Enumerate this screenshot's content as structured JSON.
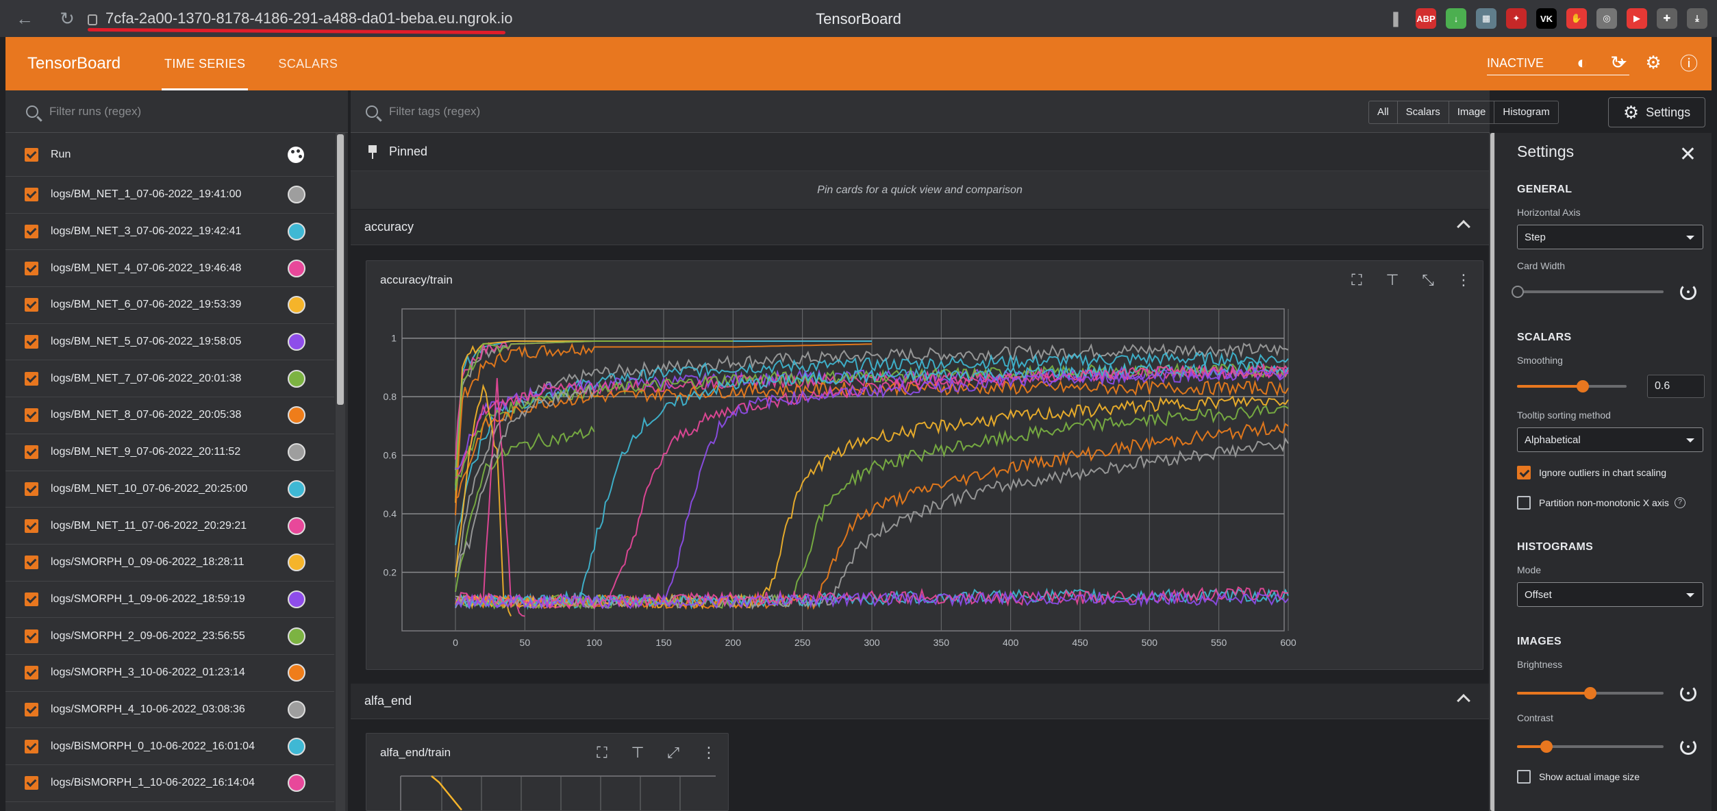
{
  "browser": {
    "url": "7cfa-2a00-1370-8178-4186-291-a488-da01-beba.eu.ngrok.io",
    "tab_title": "TensorBoard",
    "extensions": [
      {
        "name": "abp-icon",
        "label": "ABP",
        "color": "#d32f2f"
      },
      {
        "name": "download-helper-icon",
        "label": "↓",
        "color": "#4caf50"
      },
      {
        "name": "extension-grid-icon",
        "label": "▦",
        "color": "#607d8b"
      },
      {
        "name": "extension-dev-icon",
        "label": "✦",
        "color": "#c62828"
      },
      {
        "name": "vk-icon",
        "label": "VK",
        "color": "#000000"
      },
      {
        "name": "stop-hand-icon",
        "label": "✋",
        "color": "#e53935"
      },
      {
        "name": "globe-icon",
        "label": "◎",
        "color": "#757575"
      },
      {
        "name": "youtube-icon",
        "label": "▶",
        "color": "#e53935"
      },
      {
        "name": "puzzle-icon",
        "label": "✚",
        "color": "#616161"
      },
      {
        "name": "download-icon",
        "label": "⤓",
        "color": "#616161"
      }
    ]
  },
  "app": {
    "brand": "TensorBoard",
    "tabs": [
      "TIME SERIES",
      "SCALARS"
    ],
    "reload_status": "INACTIVE",
    "accent": "#e8771f"
  },
  "runs": {
    "filter_placeholder": "Filter runs (regex)",
    "header": "Run",
    "items": [
      {
        "name": "logs/BM_NET_1_07-06-2022_19:41:00",
        "color": "#9e9e9e"
      },
      {
        "name": "logs/BM_NET_3_07-06-2022_19:42:41",
        "color": "#3fb8d4"
      },
      {
        "name": "logs/BM_NET_4_07-06-2022_19:46:48",
        "color": "#e8489a"
      },
      {
        "name": "logs/BM_NET_6_07-06-2022_19:53:39",
        "color": "#f5b42a"
      },
      {
        "name": "logs/BM_NET_5_07-06-2022_19:58:05",
        "color": "#8e4dea"
      },
      {
        "name": "logs/BM_NET_7_07-06-2022_20:01:38",
        "color": "#7cb342"
      },
      {
        "name": "logs/BM_NET_8_07-06-2022_20:05:38",
        "color": "#ef7d1a"
      },
      {
        "name": "logs/BM_NET_9_07-06-2022_20:11:52",
        "color": "#9e9e9e"
      },
      {
        "name": "logs/BM_NET_10_07-06-2022_20:25:00",
        "color": "#3fb8d4"
      },
      {
        "name": "logs/BM_NET_11_07-06-2022_20:29:21",
        "color": "#e8489a"
      },
      {
        "name": "logs/SMORPH_0_09-06-2022_18:28:11",
        "color": "#f5b42a"
      },
      {
        "name": "logs/SMORPH_1_09-06-2022_18:59:19",
        "color": "#8e4dea"
      },
      {
        "name": "logs/SMORPH_2_09-06-2022_23:56:55",
        "color": "#7cb342"
      },
      {
        "name": "logs/SMORPH_3_10-06-2022_01:23:14",
        "color": "#ef7d1a"
      },
      {
        "name": "logs/SMORPH_4_10-06-2022_03:08:36",
        "color": "#9e9e9e"
      },
      {
        "name": "logs/BiSMORPH_0_10-06-2022_16:01:04",
        "color": "#3fb8d4"
      },
      {
        "name": "logs/BiSMORPH_1_10-06-2022_16:14:04",
        "color": "#e8489a"
      }
    ]
  },
  "main": {
    "tag_filter_placeholder": "Filter tags (regex)",
    "type_filters": [
      "All",
      "Scalars",
      "Image",
      "Histogram"
    ],
    "settings_button": "Settings",
    "pinned_label": "Pinned",
    "pinned_empty": "Pin cards for a quick view and comparison",
    "groups": [
      "accuracy",
      "alfa_end"
    ],
    "cards": [
      "accuracy/train",
      "alfa_end/train"
    ]
  },
  "chart_data": [
    {
      "type": "line",
      "title": "accuracy/train",
      "xlim": [
        0,
        600
      ],
      "ylim": [
        0,
        1.1
      ],
      "x_ticks": [
        0,
        50,
        100,
        150,
        200,
        250,
        300,
        350,
        400,
        450,
        500,
        550,
        600
      ],
      "y_ticks": [
        0.2,
        0.4,
        0.6,
        0.8,
        1
      ],
      "grid": true,
      "series": [
        {
          "color": "#9e9e9e",
          "x": [
            0,
            5,
            20,
            40,
            100,
            200,
            300
          ],
          "y": [
            0.55,
            0.85,
            0.95,
            0.98,
            0.99,
            0.99,
            0.99
          ]
        },
        {
          "color": "#3fb8d4",
          "x": [
            0,
            5,
            20,
            40,
            100,
            200,
            300
          ],
          "y": [
            0.5,
            0.9,
            0.97,
            0.99,
            0.99,
            0.99,
            0.99
          ]
        },
        {
          "color": "#e8489a",
          "x": [
            0,
            5,
            20,
            40,
            100,
            200
          ],
          "y": [
            0.6,
            0.88,
            0.96,
            0.98,
            0.99,
            0.99
          ]
        },
        {
          "color": "#f5b42a",
          "x": [
            0,
            5,
            20,
            40,
            100,
            200
          ],
          "y": [
            0.45,
            0.92,
            0.98,
            0.99,
            0.99,
            0.99
          ]
        },
        {
          "color": "#7cb342",
          "x": [
            0,
            5,
            20,
            40,
            100,
            200
          ],
          "y": [
            0.5,
            0.86,
            0.96,
            0.98,
            0.99,
            0.99
          ]
        },
        {
          "color": "#ef7d1a",
          "x": [
            0,
            5,
            20,
            40,
            100,
            200,
            300
          ],
          "y": [
            0.4,
            0.8,
            0.9,
            0.95,
            0.97,
            0.97,
            0.98
          ]
        },
        {
          "color": "#9e9e9e",
          "x": [
            0,
            10,
            30,
            60,
            100,
            150,
            200,
            300,
            400,
            500,
            600
          ],
          "y": [
            0.2,
            0.45,
            0.72,
            0.82,
            0.88,
            0.9,
            0.92,
            0.94,
            0.95,
            0.96,
            0.96
          ]
        },
        {
          "color": "#3fb8d4",
          "x": [
            0,
            10,
            30,
            60,
            100,
            150,
            200,
            300,
            400,
            500,
            600
          ],
          "y": [
            0.3,
            0.55,
            0.75,
            0.8,
            0.85,
            0.88,
            0.9,
            0.91,
            0.92,
            0.93,
            0.93
          ]
        },
        {
          "color": "#8e4dea",
          "x": [
            0,
            20,
            60,
            100,
            150,
            200,
            300,
            400,
            500,
            600
          ],
          "y": [
            0.55,
            0.75,
            0.82,
            0.84,
            0.85,
            0.86,
            0.87,
            0.87,
            0.88,
            0.88
          ]
        },
        {
          "color": "#e8489a",
          "x": [
            0,
            20,
            60,
            100,
            150,
            200,
            300,
            400,
            500,
            600
          ],
          "y": [
            0.5,
            0.75,
            0.82,
            0.83,
            0.84,
            0.85,
            0.86,
            0.87,
            0.88,
            0.89
          ]
        },
        {
          "color": "#7cb342",
          "x": [
            0,
            20,
            60,
            100,
            150,
            200,
            300,
            400,
            500,
            600
          ],
          "y": [
            0.5,
            0.72,
            0.8,
            0.82,
            0.84,
            0.86,
            0.87,
            0.88,
            0.89,
            0.89
          ]
        },
        {
          "color": "#ef7d1a",
          "x": [
            0,
            20,
            60,
            100,
            150,
            200,
            300,
            400,
            500,
            600
          ],
          "y": [
            0.45,
            0.7,
            0.78,
            0.8,
            0.81,
            0.82,
            0.83,
            0.83,
            0.83,
            0.83
          ]
        },
        {
          "color": "#7cb342",
          "x": [
            0,
            10,
            20,
            40,
            60,
            80,
            100
          ],
          "y": [
            0.15,
            0.35,
            0.55,
            0.62,
            0.65,
            0.66,
            0.68
          ]
        },
        {
          "color": "#f5b42a",
          "x": [
            0,
            10,
            20,
            30,
            35,
            40
          ],
          "y": [
            0.2,
            0.6,
            0.85,
            0.6,
            0.1,
            0.05
          ]
        },
        {
          "color": "#e8489a",
          "x": [
            0,
            20,
            30,
            35,
            40,
            50
          ],
          "y": [
            0.1,
            0.1,
            0.85,
            0.5,
            0.1,
            0.05
          ]
        },
        {
          "color": "#9e9e9e",
          "x": [
            0,
            10,
            20,
            40,
            60,
            80,
            100
          ],
          "y": [
            0.2,
            0.3,
            0.5,
            0.72,
            0.78,
            0.8,
            0.82
          ]
        },
        {
          "color": "#3fb8d4",
          "x": [
            0,
            80,
            90,
            100,
            110,
            120,
            130,
            140,
            150,
            160,
            180,
            200,
            250,
            300,
            400,
            500,
            600
          ],
          "y": [
            0.1,
            0.1,
            0.1,
            0.3,
            0.45,
            0.6,
            0.68,
            0.72,
            0.75,
            0.78,
            0.82,
            0.84,
            0.86,
            0.87,
            0.88,
            0.89,
            0.9
          ]
        },
        {
          "color": "#e8489a",
          "x": [
            0,
            110,
            120,
            130,
            140,
            150,
            160,
            180,
            200,
            250,
            300,
            400,
            500,
            600
          ],
          "y": [
            0.1,
            0.1,
            0.2,
            0.35,
            0.5,
            0.6,
            0.66,
            0.72,
            0.76,
            0.8,
            0.83,
            0.86,
            0.88,
            0.89
          ]
        },
        {
          "color": "#8e4dea",
          "x": [
            0,
            150,
            160,
            170,
            180,
            190,
            200,
            220,
            250,
            300,
            400,
            500,
            600
          ],
          "y": [
            0.1,
            0.1,
            0.22,
            0.45,
            0.6,
            0.7,
            0.75,
            0.78,
            0.8,
            0.82,
            0.85,
            0.87,
            0.88
          ]
        },
        {
          "color": "#f5b42a",
          "x": [
            0,
            220,
            230,
            240,
            250,
            260,
            280,
            300,
            350,
            400,
            450,
            500,
            550,
            600
          ],
          "y": [
            0.1,
            0.1,
            0.2,
            0.38,
            0.5,
            0.56,
            0.62,
            0.66,
            0.7,
            0.73,
            0.75,
            0.77,
            0.78,
            0.79
          ]
        },
        {
          "color": "#7cb342",
          "x": [
            0,
            240,
            250,
            260,
            270,
            280,
            300,
            350,
            400,
            450,
            500,
            550,
            600
          ],
          "y": [
            0.1,
            0.1,
            0.2,
            0.36,
            0.44,
            0.5,
            0.56,
            0.62,
            0.66,
            0.7,
            0.72,
            0.74,
            0.76
          ]
        },
        {
          "color": "#ef7d1a",
          "x": [
            0,
            260,
            270,
            280,
            290,
            300,
            350,
            400,
            450,
            500,
            550,
            600
          ],
          "y": [
            0.1,
            0.1,
            0.22,
            0.32,
            0.38,
            0.42,
            0.5,
            0.56,
            0.6,
            0.64,
            0.67,
            0.7
          ]
        },
        {
          "color": "#9e9e9e",
          "x": [
            0,
            270,
            280,
            290,
            300,
            320,
            350,
            400,
            450,
            500,
            550,
            600
          ],
          "y": [
            0.1,
            0.1,
            0.2,
            0.28,
            0.32,
            0.38,
            0.44,
            0.5,
            0.54,
            0.58,
            0.61,
            0.64
          ]
        },
        {
          "color": "#3fb8d4",
          "x": [
            0,
            100,
            200,
            300,
            400,
            500,
            600
          ],
          "y": [
            0.1,
            0.11,
            0.1,
            0.11,
            0.12,
            0.12,
            0.12
          ]
        },
        {
          "color": "#e8489a",
          "x": [
            0,
            100,
            200,
            300,
            400,
            500,
            600
          ],
          "y": [
            0.11,
            0.1,
            0.11,
            0.12,
            0.11,
            0.12,
            0.13
          ]
        },
        {
          "color": "#8e4dea",
          "x": [
            0,
            100,
            200,
            300,
            400,
            500,
            600
          ],
          "y": [
            0.1,
            0.1,
            0.1,
            0.11,
            0.11,
            0.11,
            0.11
          ]
        }
      ]
    },
    {
      "type": "line",
      "title": "alfa_end/train",
      "grid": true,
      "series": [
        {
          "color": "#f5b42a",
          "x": [
            0,
            1,
            2,
            3,
            4
          ],
          "y": [
            1.0,
            0.9,
            0.75,
            0.6,
            0.45
          ]
        }
      ]
    }
  ],
  "settings": {
    "title": "Settings",
    "general": "GENERAL",
    "horizontal_axis_label": "Horizontal Axis",
    "horizontal_axis_value": "Step",
    "card_width_label": "Card Width",
    "card_width": 0,
    "scalars": "SCALARS",
    "smoothing_label": "Smoothing",
    "smoothing_value": "0.6",
    "smoothing": 0.6,
    "tooltip_label": "Tooltip sorting method",
    "tooltip_value": "Alphabetical",
    "ignore_outliers": "Ignore outliers in chart scaling",
    "partition": "Partition non-monotonic X axis",
    "histograms": "HISTOGRAMS",
    "mode_label": "Mode",
    "mode_value": "Offset",
    "images": "IMAGES",
    "brightness_label": "Brightness",
    "brightness": 0.5,
    "contrast_label": "Contrast",
    "contrast": 0.2,
    "actual_size": "Show actual image size"
  }
}
